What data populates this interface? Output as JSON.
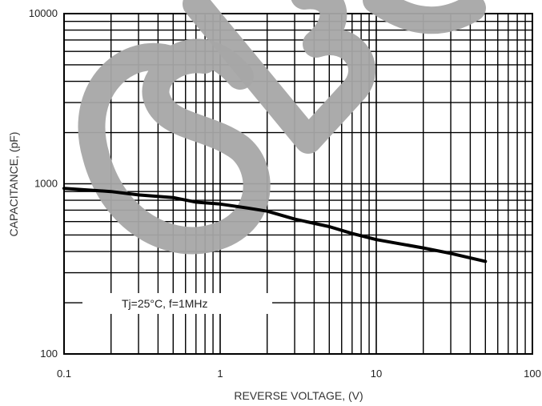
{
  "chart_data": {
    "type": "line",
    "title": "",
    "xlabel": "REVERSE VOLTAGE, (V)",
    "ylabel": "CAPACITANCE, (pF)",
    "x_scale": "log",
    "y_scale": "log",
    "xlim": [
      0.1,
      100
    ],
    "ylim": [
      100,
      10000
    ],
    "x_ticks": [
      "0.1",
      "1",
      "10",
      "100"
    ],
    "y_ticks": [
      "100",
      "1000",
      "10000"
    ],
    "grid": true,
    "annotation": "Tj=25°C, f=1MHz",
    "series": [
      {
        "x": [
          0.1,
          0.2,
          0.3,
          0.5,
          0.7,
          1,
          1.5,
          2,
          3,
          5,
          7,
          10,
          15,
          20,
          30,
          50
        ],
        "y": [
          940,
          900,
          860,
          830,
          780,
          760,
          720,
          690,
          620,
          560,
          510,
          470,
          440,
          420,
          390,
          350
        ]
      }
    ],
    "watermark": "SBG"
  },
  "colors": {
    "line": "#000000",
    "grid": "#000000",
    "watermark": "#a6a6a6"
  }
}
